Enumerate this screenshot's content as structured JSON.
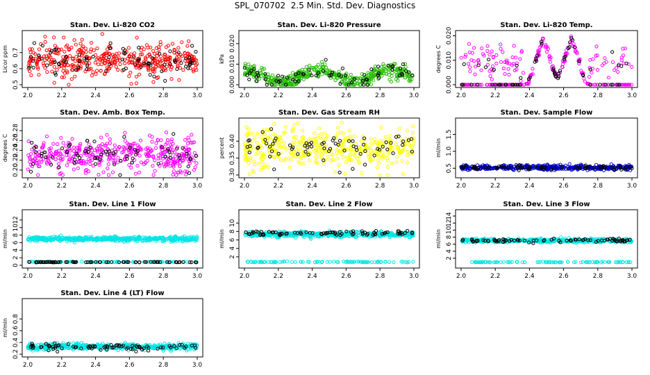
{
  "figure": {
    "title": "SPL_070702  2.5 Min. Std. Dev. Diagnostics"
  },
  "chart_data": [
    {
      "id": "co2",
      "type": "scatter",
      "title": "Stan. Dev. Li-820 CO2",
      "ylabel": "Licor ppm",
      "xlim": [
        2.0,
        3.0
      ],
      "ylim": [
        0.5,
        0.82
      ],
      "xticks": [
        "2.0",
        "2.2",
        "2.4",
        "2.6",
        "2.8",
        "3.0"
      ],
      "yticks": [
        "0.5",
        "0.6",
        "0.7"
      ],
      "series": [
        {
          "color": "#ff0000",
          "n": 420,
          "kind": "band",
          "mean": 0.655,
          "spread": 0.05
        },
        {
          "color": "#000000",
          "n": 80,
          "kind": "band",
          "mean": 0.645,
          "spread": 0.05
        }
      ]
    },
    {
      "id": "pressure",
      "type": "scatter",
      "title": "Stan. Dev. Li-820 Pressure",
      "ylabel": "kPa",
      "xlim": [
        2.0,
        3.0
      ],
      "ylim": [
        0.0,
        0.025
      ],
      "xticks": [
        "2.0",
        "2.2",
        "2.4",
        "2.6",
        "2.8",
        "3.0"
      ],
      "yticks": [
        "0.000",
        "0.010",
        "0.020"
      ],
      "series": [
        {
          "color": "#22bb00",
          "n": 420,
          "kind": "pressure"
        },
        {
          "color": "#000000",
          "n": 70,
          "kind": "pressure"
        }
      ]
    },
    {
      "id": "temp",
      "type": "scatter",
      "title": "Stan. Dev. Li-820 Temp.",
      "ylabel": "degrees C",
      "xlim": [
        2.0,
        3.0
      ],
      "ylim": [
        0.0,
        0.021
      ],
      "xticks": [
        "2.0",
        "2.2",
        "2.4",
        "2.6",
        "2.8",
        "3.0"
      ],
      "yticks": [
        "0.000",
        "0.010",
        "0.020"
      ],
      "series": [
        {
          "color": "#ff00ff",
          "n": 300,
          "kind": "temp"
        },
        {
          "color": "#000000",
          "n": 70,
          "kind": "temp"
        }
      ]
    },
    {
      "id": "ambbox",
      "type": "scatter",
      "title": "Stan. Dev. Amb. Box Temp.",
      "ylabel": "degrees C",
      "xlim": [
        2.0,
        3.0
      ],
      "ylim": [
        0.19,
        0.3
      ],
      "xticks": [
        "2.0",
        "2.2",
        "2.4",
        "2.6",
        "2.8",
        "3.0"
      ],
      "yticks": [
        "0.20",
        "0.22",
        "0.24",
        "0.26",
        "0.28"
      ],
      "series": [
        {
          "color": "#ff00ff",
          "n": 420,
          "kind": "band",
          "mean": 0.232,
          "spread": 0.018
        },
        {
          "color": "#000000",
          "n": 70,
          "kind": "band",
          "mean": 0.23,
          "spread": 0.015
        }
      ]
    },
    {
      "id": "rh",
      "type": "scatter",
      "title": "Stan. Dev. Gas Stream RH",
      "ylabel": "percent",
      "xlim": [
        2.0,
        3.0
      ],
      "ylim": [
        0.3,
        0.46
      ],
      "xticks": [
        "2.0",
        "2.2",
        "2.4",
        "2.6",
        "2.8",
        "3.0"
      ],
      "yticks": [
        "0.30",
        "0.35",
        "0.40"
      ],
      "series": [
        {
          "color": "#ffff00",
          "n": 420,
          "kind": "band",
          "mean": 0.38,
          "spread": 0.028
        },
        {
          "color": "#000000",
          "n": 70,
          "kind": "band",
          "mean": 0.38,
          "spread": 0.025
        }
      ]
    },
    {
      "id": "sampleflow",
      "type": "scatter",
      "title": "Stan. Dev. Sample Flow",
      "ylabel": "ml/min",
      "xlim": [
        2.0,
        3.0
      ],
      "ylim": [
        0.3,
        1.9
      ],
      "xticks": [
        "2.0",
        "2.2",
        "2.4",
        "2.6",
        "2.8",
        "3.0"
      ],
      "yticks": [
        "0.5",
        "1.0",
        "1.5"
      ],
      "series": [
        {
          "color": "#0000cc",
          "n": 420,
          "kind": "band",
          "mean": 0.52,
          "spread": 0.035
        },
        {
          "color": "#000000",
          "n": 70,
          "kind": "band",
          "mean": 0.52,
          "spread": 0.03
        }
      ]
    },
    {
      "id": "line1",
      "type": "scatter",
      "title": "Stan. Dev. Line 1 Flow",
      "ylabel": "ml/min",
      "xlim": [
        2.0,
        3.0
      ],
      "ylim": [
        0,
        14
      ],
      "xticks": [
        "2.0",
        "2.2",
        "2.4",
        "2.6",
        "2.8",
        "3.0"
      ],
      "yticks": [
        "0",
        "2",
        "4",
        "6",
        "8",
        "10",
        "12"
      ],
      "series": [
        {
          "color": "#00e5e5",
          "n": 420,
          "kind": "band",
          "mean": 7.0,
          "spread": 0.3
        },
        {
          "color": "#00e5e5",
          "n": 90,
          "kind": "band",
          "mean": 0.9,
          "spread": 0.05
        },
        {
          "color": "#000000",
          "n": 80,
          "kind": "band",
          "mean": 0.85,
          "spread": 0.04
        }
      ]
    },
    {
      "id": "line2",
      "type": "scatter",
      "title": "Stan. Dev. Line 2 Flow",
      "ylabel": "ml/min",
      "xlim": [
        2.0,
        3.0
      ],
      "ylim": [
        0,
        12.5
      ],
      "xticks": [
        "2.0",
        "2.2",
        "2.4",
        "2.6",
        "2.8",
        "3.0"
      ],
      "yticks": [
        "2",
        "4",
        "6",
        "8",
        "10"
      ],
      "series": [
        {
          "color": "#00e5e5",
          "n": 420,
          "kind": "band",
          "mean": 7.3,
          "spread": 0.3
        },
        {
          "color": "#00e5e5",
          "n": 90,
          "kind": "band",
          "mean": 0.8,
          "spread": 0.05
        },
        {
          "color": "#000000",
          "n": 80,
          "kind": "band",
          "mean": 7.6,
          "spread": 0.25
        }
      ]
    },
    {
      "id": "line3",
      "type": "scatter",
      "title": "Stan. Dev. Line 3 Flow",
      "ylabel": "ml/min",
      "xlim": [
        2.0,
        3.0
      ],
      "ylim": [
        0,
        15
      ],
      "xticks": [
        "2.0",
        "2.2",
        "2.4",
        "2.6",
        "2.8",
        "3.0"
      ],
      "yticks": [
        "2",
        "4",
        "6",
        "8",
        "10",
        "12",
        "14"
      ],
      "series": [
        {
          "color": "#00e5e5",
          "n": 420,
          "kind": "band",
          "mean": 7.0,
          "spread": 0.3
        },
        {
          "color": "#00e5e5",
          "n": 90,
          "kind": "band",
          "mean": 0.9,
          "spread": 0.05
        },
        {
          "color": "#000000",
          "n": 80,
          "kind": "band",
          "mean": 7.0,
          "spread": 0.25
        }
      ]
    },
    {
      "id": "line4",
      "type": "scatter",
      "title": "Stan. Dev. Line 4 (LT) Flow",
      "ylabel": "ml/min",
      "xlim": [
        2.0,
        3.0
      ],
      "ylim": [
        0.2,
        1.1
      ],
      "xticks": [
        "2.0",
        "2.2",
        "2.4",
        "2.6",
        "2.8",
        "3.0"
      ],
      "yticks": [
        "0.2",
        "0.4",
        "0.6",
        "0.8"
      ],
      "series": [
        {
          "color": "#00e5e5",
          "n": 420,
          "kind": "band",
          "mean": 0.33,
          "spread": 0.025
        },
        {
          "color": "#000000",
          "n": 80,
          "kind": "band",
          "mean": 0.32,
          "spread": 0.03
        }
      ]
    }
  ]
}
